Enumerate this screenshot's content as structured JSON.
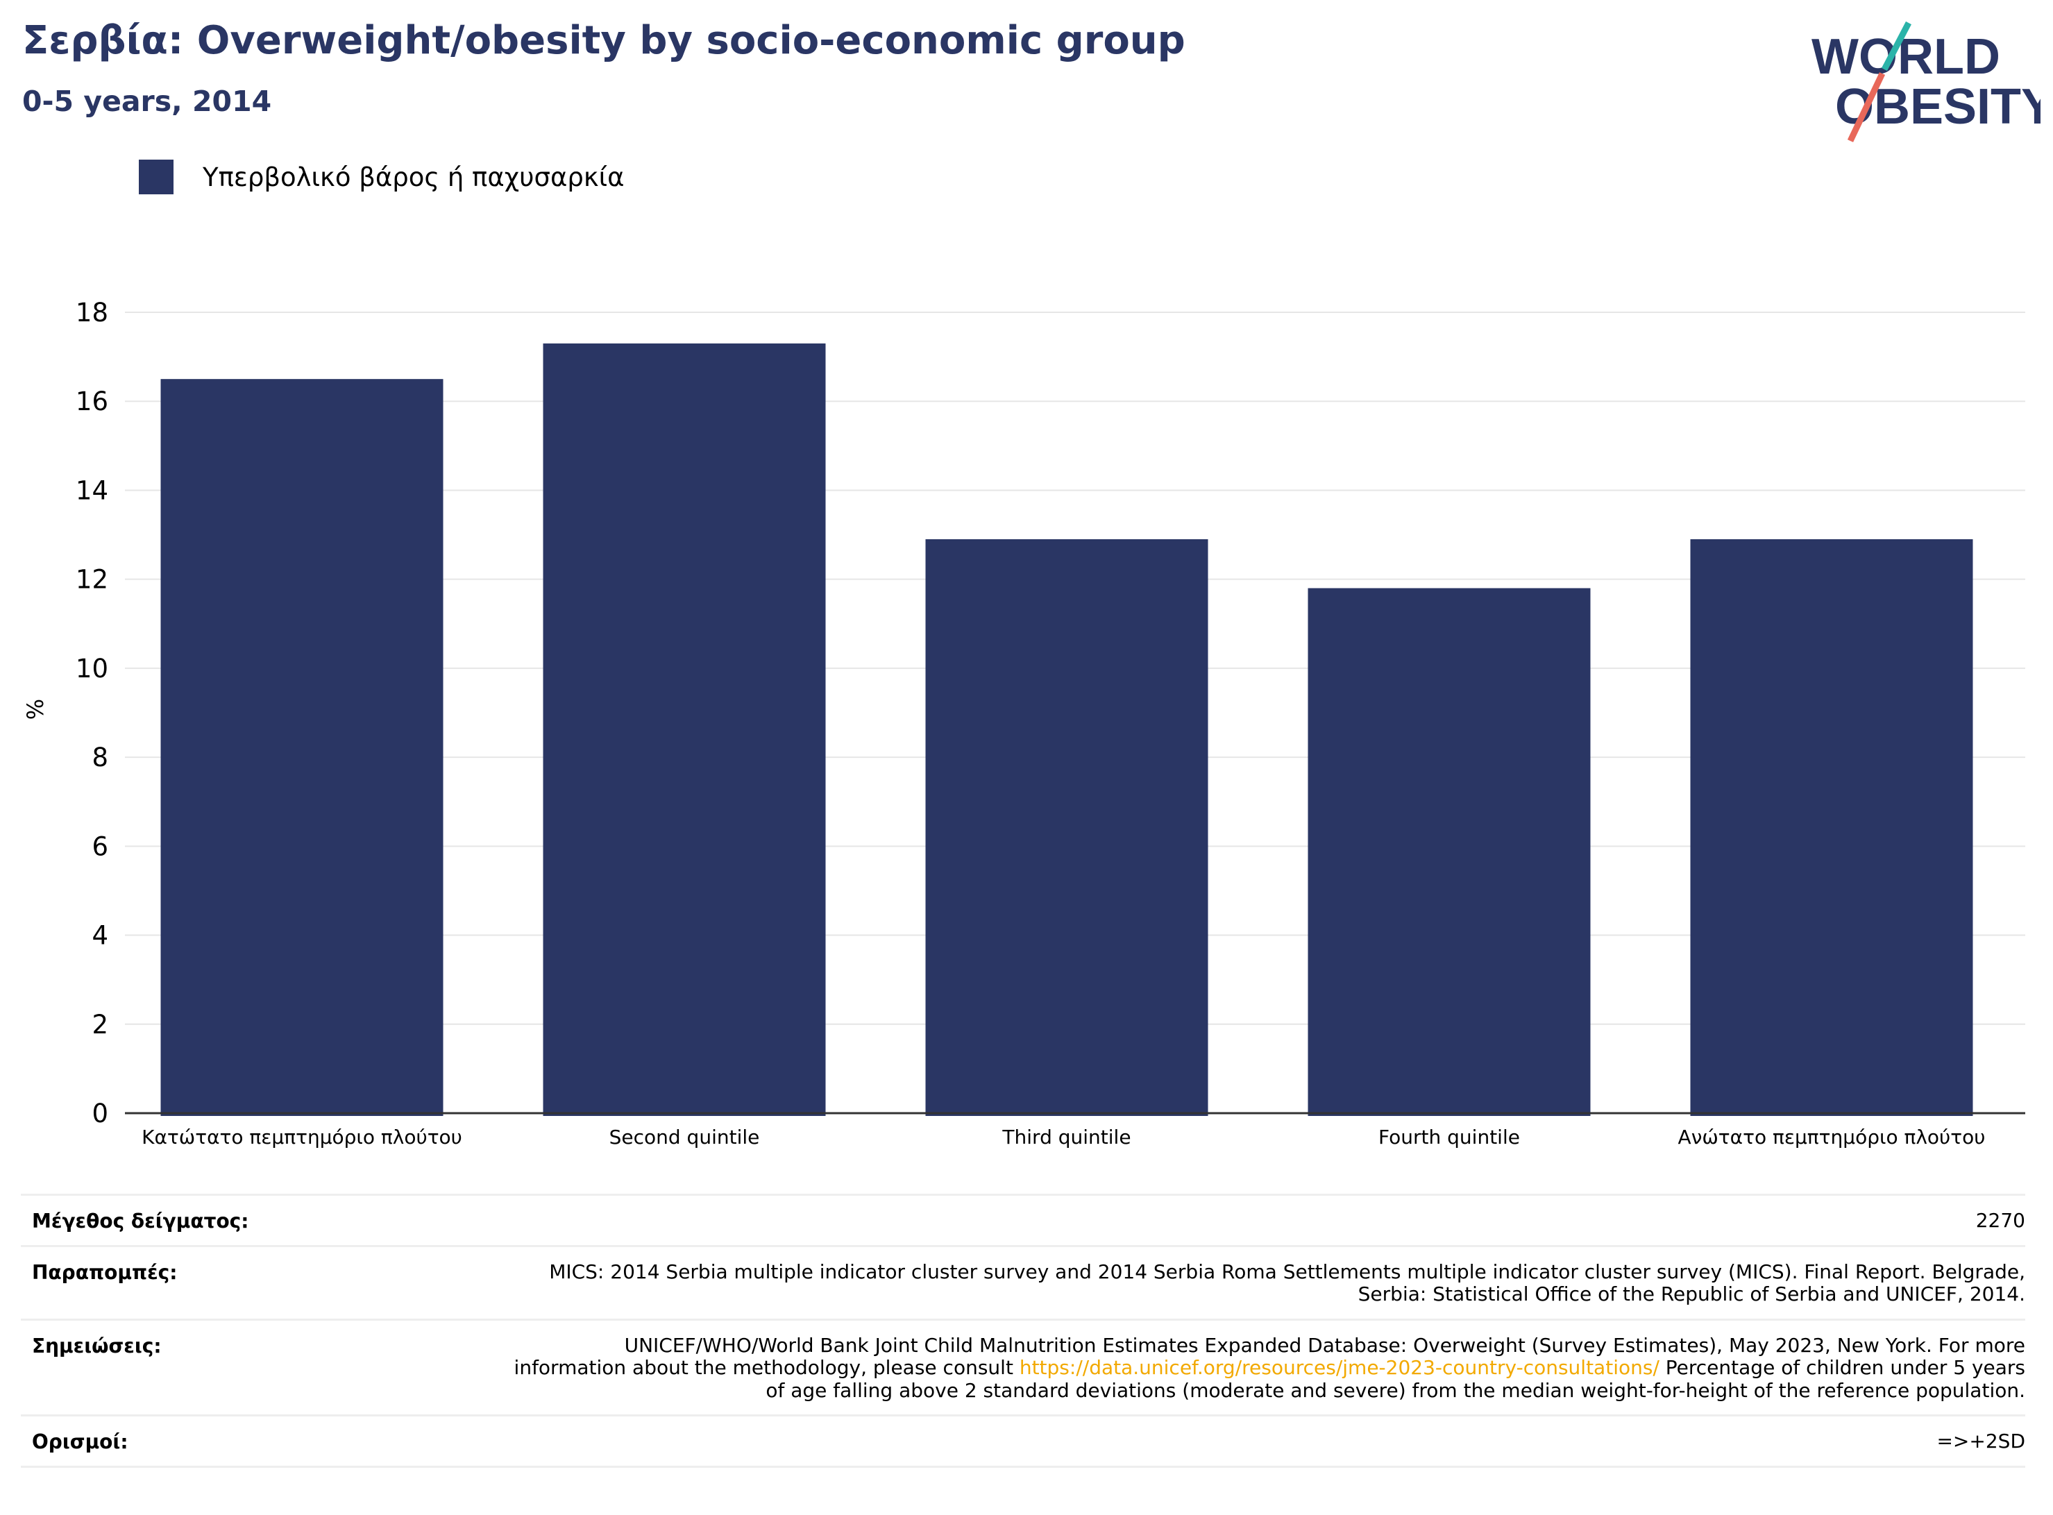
{
  "header": {
    "title": "Σερβία: Overweight/obesity by socio-economic group",
    "subtitle": "0-5 years, 2014"
  },
  "logo": {
    "line1": "WORLD",
    "line2": "OBESITY"
  },
  "colors": {
    "bar": "#2a3664",
    "title": "#2a3664",
    "link": "#f2a900",
    "logo_teal": "#2bb3a9",
    "logo_coral": "#e8685a",
    "grid": "#e6e6e6"
  },
  "legend": {
    "label": "Υπερβολικό βάρος ή παχυσαρκία"
  },
  "chart_data": {
    "type": "bar",
    "categories": [
      "Κατώτατο πεμπτημόριο πλούτου",
      "Second quintile",
      "Third quintile",
      "Fourth quintile",
      "Ανώτατο πεμπτημόριο πλούτου"
    ],
    "series": [
      {
        "name": "Υπερβολικό βάρος ή παχυσαρκία",
        "values": [
          16.5,
          17.3,
          12.9,
          11.8,
          12.9
        ]
      }
    ],
    "ylabel": "%",
    "ylim": [
      0,
      18
    ],
    "yticks": [
      0,
      2,
      4,
      6,
      8,
      10,
      12,
      14,
      16,
      18
    ],
    "grid": true,
    "legend_position": "top-left"
  },
  "meta": {
    "sample_size_label": "Μέγεθος δείγματος:",
    "sample_size_value": "2270",
    "references_label": "Παραπομπές:",
    "references_value": "MICS: 2014 Serbia multiple indicator cluster survey and 2014 Serbia Roma Settlements multiple indicator cluster survey (MICS). Final Report. Belgrade, Serbia: Statistical Office of the Republic of Serbia and UNICEF, 2014.",
    "notes_label": "Σημειώσεις:",
    "notes_before": "UNICEF/WHO/World Bank Joint Child Malnutrition Estimates Expanded Database: Overweight (Survey Estimates), May 2023, New York. For more information about the methodology, please consult ",
    "notes_link": "https://data.unicef.org/resources/jme-2023-country-consultations/",
    "notes_after": " Percentage of children under 5 years of age falling above 2 standard deviations (moderate and severe) from the median weight-for-height of the reference population.",
    "definitions_label": "Ορισμοί:",
    "definitions_value": "=>+2SD"
  }
}
